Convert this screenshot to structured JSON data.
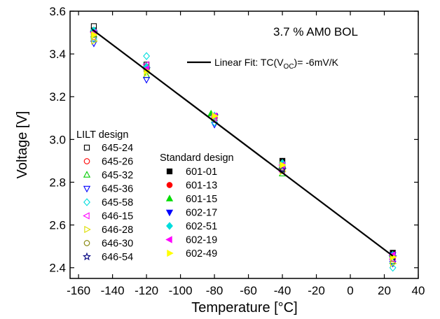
{
  "chart_data": {
    "type": "scatter",
    "annotation": "3.7 % AM0 BOL",
    "xlabel": "Temperature [°C]",
    "ylabel": "Voltage [V]",
    "xlim": [
      -165,
      40
    ],
    "ylim": [
      2.35,
      3.6
    ],
    "xticks": [
      -160,
      -140,
      -120,
      -100,
      -80,
      -60,
      -40,
      -20,
      0,
      20,
      40
    ],
    "yticks": [
      2.4,
      2.6,
      2.8,
      3.0,
      3.2,
      3.4,
      3.6
    ],
    "ytick_labels": [
      "2.4",
      "2.6",
      "2.8",
      "3.0",
      "3.2",
      "3.4",
      "3.6"
    ],
    "fit": {
      "label": "Linear Fit: TC(V",
      "label_sub": "OC",
      "label_end": ")= -6mV/K",
      "slope_mV_per_K": -6,
      "x": [
        -152,
        25
      ],
      "y": [
        3.515,
        2.455
      ],
      "color": "#000000"
    },
    "legend_groups": [
      {
        "title": "LILT design",
        "position": "left"
      },
      {
        "title": "Standard design",
        "position": "center"
      }
    ],
    "series": [
      {
        "name": "645-24",
        "group": 0,
        "marker": "square",
        "filled": false,
        "color": "#000000",
        "x": [
          -151,
          -120,
          -80,
          -40,
          25
        ],
        "y": [
          3.53,
          3.35,
          3.11,
          2.87,
          2.46
        ]
      },
      {
        "name": "645-26",
        "group": 0,
        "marker": "circle",
        "filled": false,
        "color": "#ff0000",
        "x": [
          -151,
          -120,
          -80,
          -40,
          25
        ],
        "y": [
          3.48,
          3.33,
          3.11,
          2.86,
          2.44
        ]
      },
      {
        "name": "645-32",
        "group": 0,
        "marker": "triangle-up",
        "filled": false,
        "color": "#00cc00",
        "x": [
          -151,
          -120,
          -80,
          -40,
          25
        ],
        "y": [
          3.49,
          3.3,
          3.1,
          2.84,
          2.43
        ]
      },
      {
        "name": "645-36",
        "group": 0,
        "marker": "triangle-down",
        "filled": false,
        "color": "#0000ff",
        "x": [
          -151,
          -120,
          -80,
          -40,
          25
        ],
        "y": [
          3.45,
          3.28,
          3.07,
          2.86,
          2.42
        ]
      },
      {
        "name": "645-58",
        "group": 0,
        "marker": "diamond",
        "filled": false,
        "color": "#00dddd",
        "x": [
          -151,
          -120,
          -80,
          -40,
          25
        ],
        "y": [
          3.47,
          3.39,
          3.08,
          2.87,
          2.4
        ]
      },
      {
        "name": "646-15",
        "group": 0,
        "marker": "triangle-left",
        "filled": false,
        "color": "#ff00ff",
        "x": [
          -151,
          -120,
          -80,
          -40,
          25
        ],
        "y": [
          3.5,
          3.35,
          3.1,
          2.85,
          2.44
        ]
      },
      {
        "name": "646-28",
        "group": 0,
        "marker": "triangle-right",
        "filled": false,
        "color": "#dddd00",
        "x": [
          -151,
          -120,
          -80,
          -40,
          25
        ],
        "y": [
          3.46,
          3.31,
          3.1,
          2.85,
          2.42
        ]
      },
      {
        "name": "646-30",
        "group": 0,
        "marker": "circle",
        "filled": false,
        "color": "#808000",
        "x": [
          -151,
          -120,
          -80,
          -40,
          25
        ],
        "y": [
          3.49,
          3.34,
          3.11,
          2.86,
          2.46
        ]
      },
      {
        "name": "646-54",
        "group": 0,
        "marker": "star",
        "filled": false,
        "color": "#000080",
        "x": [
          -151,
          -120,
          -80,
          -40,
          25
        ],
        "y": [
          3.5,
          3.33,
          3.11,
          2.86,
          2.45
        ]
      },
      {
        "name": "601-01",
        "group": 1,
        "marker": "square",
        "filled": true,
        "color": "#000000",
        "x": [
          -151,
          -120,
          -80,
          -40,
          25
        ],
        "y": [
          3.51,
          3.33,
          3.11,
          2.9,
          2.47
        ]
      },
      {
        "name": "601-13",
        "group": 1,
        "marker": "circle",
        "filled": true,
        "color": "#ff0000",
        "x": [
          -151,
          -120,
          -80,
          -40,
          25
        ],
        "y": [
          3.5,
          3.34,
          3.11,
          2.88,
          2.46
        ]
      },
      {
        "name": "601-15",
        "group": 1,
        "marker": "triangle-up",
        "filled": true,
        "color": "#00dd00",
        "x": [
          -151,
          -120,
          -82,
          -40,
          25
        ],
        "y": [
          3.51,
          3.34,
          3.12,
          2.88,
          2.46
        ]
      },
      {
        "name": "602-17",
        "group": 1,
        "marker": "triangle-down",
        "filled": true,
        "color": "#0000ff",
        "x": [
          -151,
          -120,
          -80,
          -40,
          25
        ],
        "y": [
          3.5,
          3.33,
          3.11,
          2.88,
          2.46
        ]
      },
      {
        "name": "602-51",
        "group": 1,
        "marker": "diamond",
        "filled": true,
        "color": "#00dddd",
        "x": [
          -151,
          -120,
          -80,
          -40,
          25
        ],
        "y": [
          3.51,
          3.34,
          3.11,
          2.89,
          2.46
        ]
      },
      {
        "name": "602-19",
        "group": 1,
        "marker": "triangle-left",
        "filled": true,
        "color": "#ff00ff",
        "x": [
          -151,
          -120,
          -80,
          -40,
          25
        ],
        "y": [
          3.5,
          3.33,
          3.11,
          2.88,
          2.46
        ]
      },
      {
        "name": "602-49",
        "group": 1,
        "marker": "triangle-right",
        "filled": true,
        "color": "#ffff00",
        "x": [
          -151,
          -120,
          -80,
          -40,
          25
        ],
        "y": [
          3.49,
          3.32,
          3.11,
          2.88,
          2.45
        ]
      }
    ]
  }
}
